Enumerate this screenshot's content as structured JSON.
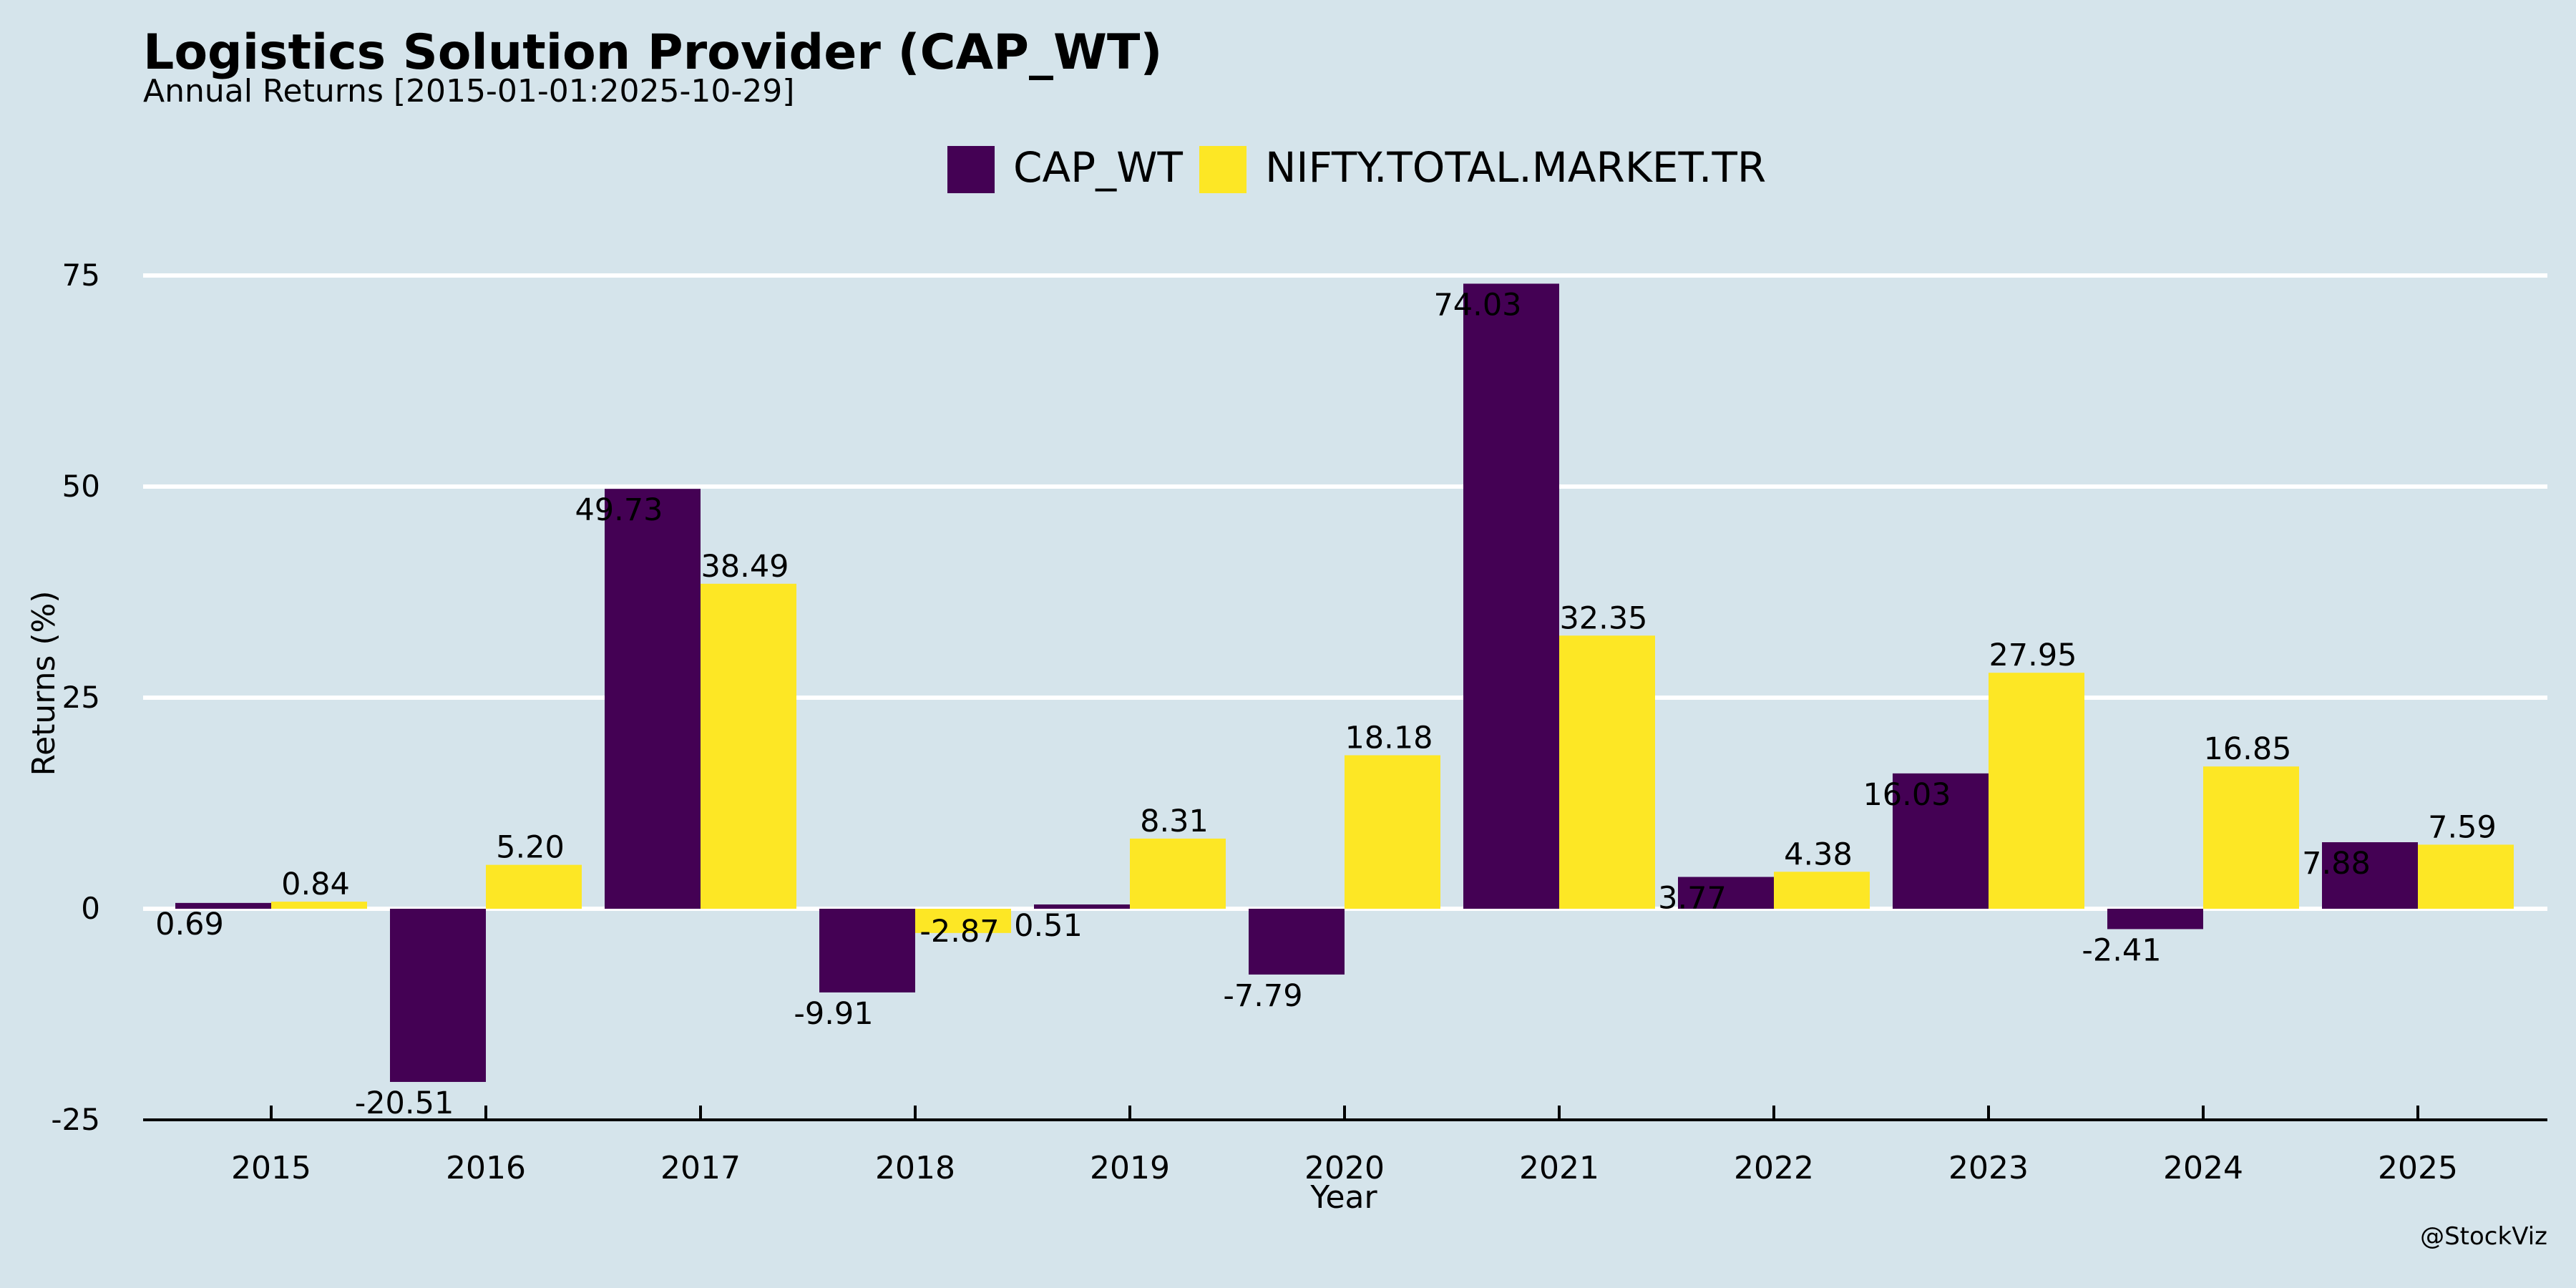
{
  "title": "Logistics Solution Provider (CAP_WT)",
  "subtitle": "Annual Returns [2015-01-01:2025-10-29]",
  "watermark": "@StockViz",
  "colors": {
    "background": "#d5e4eb",
    "CAP_WT": "#440154",
    "NIFTY.TOTAL.MARKET.TR": "#fde725",
    "grid": "#ffffff",
    "axis": "#000000"
  },
  "chart_data": {
    "type": "bar",
    "title": "Logistics Solution Provider (CAP_WT)",
    "subtitle": "Annual Returns [2015-01-01:2025-10-29]",
    "xlabel": "Year",
    "ylabel": "Returns (%)",
    "ylim": [
      -25,
      80
    ],
    "yticks": [
      -25,
      0,
      25,
      50,
      75
    ],
    "grid": true,
    "legend_position": "top-center",
    "categories": [
      "2015",
      "2016",
      "2017",
      "2018",
      "2019",
      "2020",
      "2021",
      "2022",
      "2023",
      "2024",
      "2025"
    ],
    "series": [
      {
        "name": "CAP_WT",
        "values": [
          0.69,
          -20.51,
          49.73,
          -9.91,
          0.51,
          -7.79,
          74.03,
          3.77,
          16.03,
          -2.41,
          7.88
        ],
        "labels": [
          "0.69",
          "-20.51",
          "49.73",
          "-9.91",
          "0.51",
          "-7.79",
          "74.03",
          "3.77",
          "16.03",
          "-2.41",
          "7.88"
        ]
      },
      {
        "name": "NIFTY.TOTAL.MARKET.TR",
        "values": [
          0.84,
          5.2,
          38.49,
          -2.87,
          8.31,
          18.18,
          32.35,
          4.38,
          27.95,
          16.85,
          7.59
        ],
        "labels": [
          "0.84",
          "5.20",
          "38.49",
          "-2.87",
          "8.31",
          "18.18",
          "32.35",
          "4.38",
          "27.95",
          "16.85",
          "7.59"
        ]
      }
    ]
  }
}
